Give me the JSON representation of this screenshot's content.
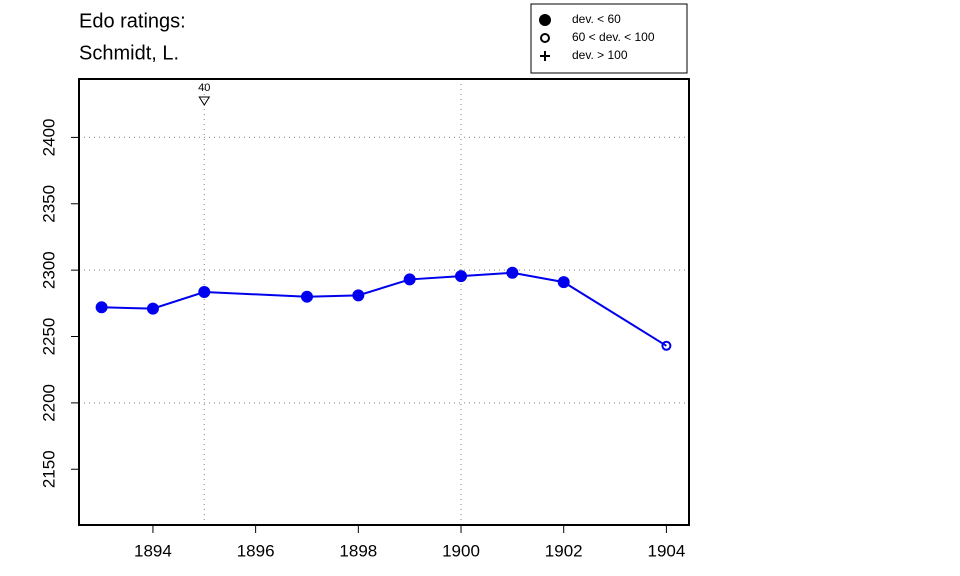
{
  "chart_data": {
    "type": "line",
    "title": [
      "Edo ratings:",
      "Schmidt, L."
    ],
    "x": [
      1893,
      1894,
      1895,
      1897,
      1898,
      1899,
      1900,
      1901,
      1902,
      1904
    ],
    "series": [
      {
        "name": "Schmidt, L.",
        "color": "#0000ee",
        "values": [
          2272,
          2271,
          2283.5,
          2280,
          2281,
          2293,
          2295.5,
          2298,
          2291,
          2243
        ],
        "point_styles": [
          "filled",
          "filled",
          "filled",
          "filled",
          "filled",
          "filled",
          "filled",
          "filled",
          "filled",
          "open"
        ]
      }
    ],
    "xlim": [
      1892.56,
      1904.44
    ],
    "xticks": [
      1894,
      1896,
      1898,
      1900,
      1902,
      1904
    ],
    "ylim": [
      2108,
      2444
    ],
    "yticks": [
      2150,
      2200,
      2250,
      2300,
      2350,
      2400
    ],
    "hgrid": [
      2200,
      2300,
      2400
    ],
    "vgrid": [
      1900
    ],
    "annotations": [
      {
        "x": 1895,
        "label": "40"
      }
    ],
    "legend": {
      "position": "top-right",
      "entries": [
        {
          "style": "filled",
          "label": "dev. < 60"
        },
        {
          "style": "open",
          "label": "60 < dev. < 100"
        },
        {
          "style": "plus",
          "label": "dev. > 100"
        }
      ]
    }
  }
}
